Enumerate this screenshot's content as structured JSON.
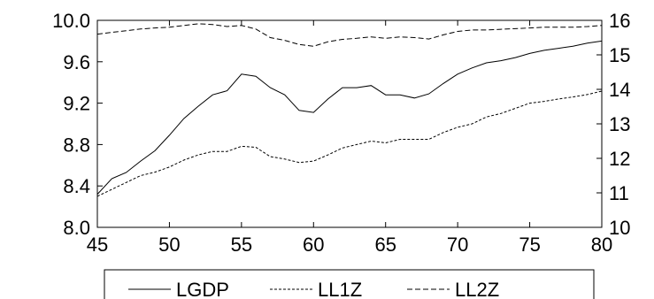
{
  "chart_data": {
    "type": "line",
    "title": "",
    "xlabel": "",
    "ylabel_left": "",
    "ylabel_right": "",
    "xlim": [
      45,
      80
    ],
    "ylim_left": [
      8.0,
      10.0
    ],
    "ylim_right": [
      10,
      16
    ],
    "x_ticks": [
      "45",
      "50",
      "55",
      "60",
      "65",
      "70",
      "75",
      "80"
    ],
    "y_left_ticks": [
      "8.0",
      "8.4",
      "8.8",
      "9.2",
      "9.6",
      "10.0"
    ],
    "y_right_ticks": [
      "10",
      "11",
      "12",
      "13",
      "14",
      "15",
      "16"
    ],
    "grid": false,
    "legend_position": "bottom-center",
    "x": [
      45,
      46,
      47,
      48,
      49,
      50,
      51,
      52,
      53,
      54,
      55,
      56,
      57,
      58,
      59,
      60,
      61,
      62,
      63,
      64,
      65,
      66,
      67,
      68,
      69,
      70,
      71,
      72,
      73,
      74,
      75,
      76,
      77,
      78,
      79,
      80
    ],
    "series": [
      {
        "name": "LGDP",
        "axis": "left",
        "dash": "solid",
        "values": [
          8.32,
          8.47,
          8.53,
          8.64,
          8.74,
          8.89,
          9.05,
          9.17,
          9.28,
          9.32,
          9.48,
          9.46,
          9.35,
          9.28,
          9.13,
          9.11,
          9.24,
          9.35,
          9.35,
          9.37,
          9.28,
          9.28,
          9.25,
          9.29,
          9.39,
          9.48,
          9.54,
          9.59,
          9.61,
          9.64,
          9.68,
          9.71,
          9.73,
          9.75,
          9.78,
          9.8
        ]
      },
      {
        "name": "LL1Z",
        "axis": "right",
        "dash": "short",
        "values": [
          10.9,
          11.1,
          11.3,
          11.5,
          11.6,
          11.75,
          11.95,
          12.1,
          12.2,
          12.2,
          12.35,
          12.32,
          12.05,
          11.98,
          11.88,
          11.92,
          12.1,
          12.3,
          12.4,
          12.5,
          12.45,
          12.55,
          12.55,
          12.55,
          12.75,
          12.9,
          13.0,
          13.2,
          13.3,
          13.45,
          13.6,
          13.65,
          13.72,
          13.78,
          13.85,
          13.95
        ]
      },
      {
        "name": "LL2Z",
        "axis": "right",
        "dash": "long",
        "values": [
          15.6,
          15.65,
          15.7,
          15.75,
          15.78,
          15.8,
          15.85,
          15.9,
          15.88,
          15.82,
          15.85,
          15.75,
          15.5,
          15.42,
          15.3,
          15.25,
          15.38,
          15.45,
          15.48,
          15.52,
          15.48,
          15.52,
          15.5,
          15.46,
          15.58,
          15.68,
          15.72,
          15.72,
          15.74,
          15.76,
          15.78,
          15.8,
          15.8,
          15.8,
          15.82,
          15.85
        ]
      }
    ]
  }
}
